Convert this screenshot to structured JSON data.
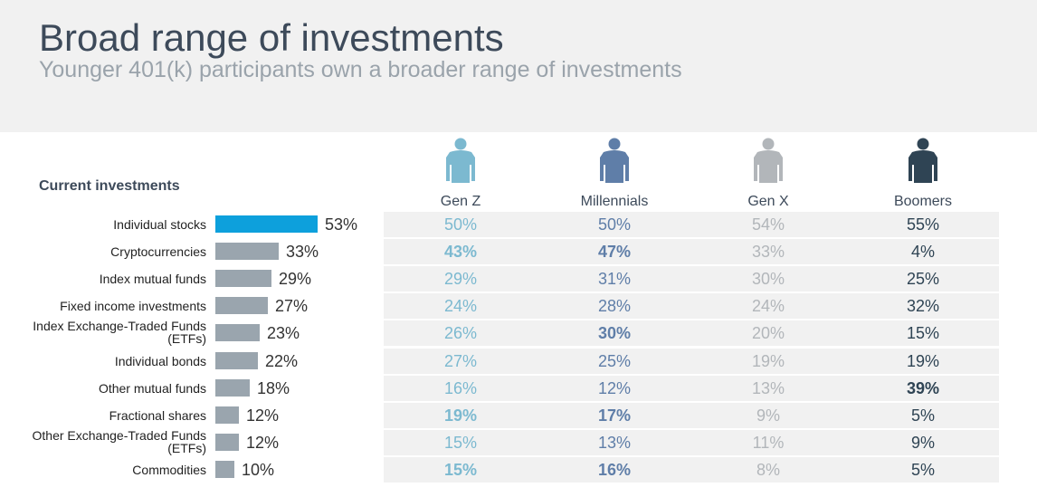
{
  "title": "Broad range of investments",
  "subtitle": "Younger 401(k) participants own a broader range of investments",
  "section_label": "Current investments",
  "colors": {
    "header_bg": "#f1f1f1",
    "highlight_bar": "#0da0dc",
    "bar": "#9aa5ae",
    "gen_z": "#7cb9d0",
    "millennials": "#5f7ea8",
    "gen_x": "#b2b6ba",
    "boomers": "#2f4454"
  },
  "chart_data": {
    "type": "table",
    "columns": [
      "Gen Z",
      "Millennials",
      "Gen X",
      "Boomers"
    ],
    "column_icons": [
      "person-icon",
      "person-icon",
      "person-icon",
      "person-icon"
    ],
    "rows": [
      {
        "label": "Individual stocks",
        "overall": 53,
        "overall_text": "53%",
        "highlight": true,
        "cells": [
          {
            "text": "50%",
            "bold": false
          },
          {
            "text": "50%",
            "bold": false
          },
          {
            "text": "54%",
            "bold": false
          },
          {
            "text": "55%",
            "bold": false
          }
        ]
      },
      {
        "label": "Cryptocurrencies",
        "overall": 33,
        "overall_text": "33%",
        "highlight": false,
        "cells": [
          {
            "text": "43%",
            "bold": true
          },
          {
            "text": "47%",
            "bold": true
          },
          {
            "text": "33%",
            "bold": false
          },
          {
            "text": "4%",
            "bold": false
          }
        ]
      },
      {
        "label": "Index mutual funds",
        "overall": 29,
        "overall_text": "29%",
        "highlight": false,
        "cells": [
          {
            "text": "29%",
            "bold": false
          },
          {
            "text": "31%",
            "bold": false
          },
          {
            "text": "30%",
            "bold": false
          },
          {
            "text": "25%",
            "bold": false
          }
        ]
      },
      {
        "label": "Fixed income investments",
        "overall": 27,
        "overall_text": "27%",
        "highlight": false,
        "cells": [
          {
            "text": "24%",
            "bold": false
          },
          {
            "text": "28%",
            "bold": false
          },
          {
            "text": "24%",
            "bold": false
          },
          {
            "text": "32%",
            "bold": false
          }
        ]
      },
      {
        "label": "Index Exchange-Traded Funds (ETFs)",
        "overall": 23,
        "overall_text": "23%",
        "highlight": false,
        "cells": [
          {
            "text": "26%",
            "bold": false
          },
          {
            "text": "30%",
            "bold": true
          },
          {
            "text": "20%",
            "bold": false
          },
          {
            "text": "15%",
            "bold": false
          }
        ]
      },
      {
        "label": "Individual bonds",
        "overall": 22,
        "overall_text": "22%",
        "highlight": false,
        "cells": [
          {
            "text": "27%",
            "bold": false
          },
          {
            "text": "25%",
            "bold": false
          },
          {
            "text": "19%",
            "bold": false
          },
          {
            "text": "19%",
            "bold": false
          }
        ]
      },
      {
        "label": "Other mutual funds",
        "overall": 18,
        "overall_text": "18%",
        "highlight": false,
        "cells": [
          {
            "text": "16%",
            "bold": false
          },
          {
            "text": "12%",
            "bold": false
          },
          {
            "text": "13%",
            "bold": false
          },
          {
            "text": "39%",
            "bold": true
          }
        ]
      },
      {
        "label": "Fractional shares",
        "overall": 12,
        "overall_text": "12%",
        "highlight": false,
        "cells": [
          {
            "text": "19%",
            "bold": true
          },
          {
            "text": "17%",
            "bold": true
          },
          {
            "text": "9%",
            "bold": false
          },
          {
            "text": "5%",
            "bold": false
          }
        ]
      },
      {
        "label": "Other Exchange-Traded Funds (ETFs)",
        "overall": 12,
        "overall_text": "12%",
        "highlight": false,
        "cells": [
          {
            "text": "15%",
            "bold": false
          },
          {
            "text": "13%",
            "bold": false
          },
          {
            "text": "11%",
            "bold": false
          },
          {
            "text": "9%",
            "bold": false
          }
        ]
      },
      {
        "label": "Commodities",
        "overall": 10,
        "overall_text": "10%",
        "highlight": false,
        "cells": [
          {
            "text": "15%",
            "bold": true
          },
          {
            "text": "16%",
            "bold": true
          },
          {
            "text": "8%",
            "bold": false
          },
          {
            "text": "5%",
            "bold": false
          }
        ]
      }
    ]
  }
}
